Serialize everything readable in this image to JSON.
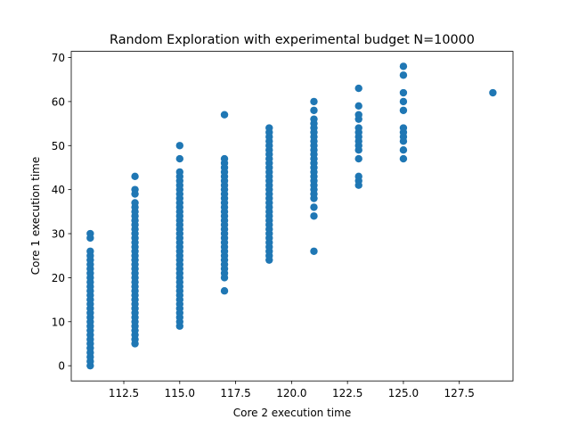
{
  "chart_data": {
    "type": "scatter",
    "title": "Random Exploration with experimental budget N=10000",
    "x_label": "Core 2 execution time",
    "y_label": "Core 1 execution time",
    "xlim": [
      110.15,
      129.9
    ],
    "ylim": [
      -3.45,
      71.4
    ],
    "xticks": [
      112.5,
      {
        "value": 115,
        "label": "115.0"
      },
      117.5,
      {
        "value": 120,
        "label": "120.0"
      },
      122.5,
      {
        "value": 125,
        "label": "125.0"
      },
      127.5
    ],
    "yticks": [
      0,
      10,
      20,
      30,
      40,
      50,
      60,
      70
    ],
    "grid": false,
    "series": [
      {
        "color": "#1f77b4",
        "x": [
          111,
          111,
          111,
          111,
          111,
          111,
          111,
          111,
          111,
          111,
          111,
          111,
          111,
          111,
          111,
          111,
          111,
          111,
          111,
          111,
          111,
          111,
          111,
          111,
          111,
          111,
          111,
          111,
          111,
          113,
          113,
          113,
          113,
          113,
          113,
          113,
          113,
          113,
          113,
          113,
          113,
          113,
          113,
          113,
          113,
          113,
          113,
          113,
          113,
          113,
          113,
          113,
          113,
          113,
          113,
          113,
          113,
          113,
          113,
          113,
          113,
          113,
          113,
          113,
          113,
          115,
          115,
          115,
          115,
          115,
          115,
          115,
          115,
          115,
          115,
          115,
          115,
          115,
          115,
          115,
          115,
          115,
          115,
          115,
          115,
          115,
          115,
          115,
          115,
          115,
          115,
          115,
          115,
          115,
          115,
          115,
          115,
          115,
          115,
          115,
          115,
          115,
          115,
          117,
          117,
          117,
          117,
          117,
          117,
          117,
          117,
          117,
          117,
          117,
          117,
          117,
          117,
          117,
          117,
          117,
          117,
          117,
          117,
          117,
          117,
          117,
          117,
          117,
          117,
          117,
          117,
          117,
          117,
          119,
          119,
          119,
          119,
          119,
          119,
          119,
          119,
          119,
          119,
          119,
          119,
          119,
          119,
          119,
          119,
          119,
          119,
          119,
          119,
          119,
          119,
          119,
          119,
          119,
          119,
          119,
          119,
          119,
          119,
          119,
          121,
          121,
          121,
          121,
          121,
          121,
          121,
          121,
          121,
          121,
          121,
          121,
          121,
          121,
          121,
          121,
          121,
          121,
          121,
          121,
          121,
          121,
          121,
          121,
          123,
          123,
          123,
          123,
          123,
          123,
          123,
          123,
          123,
          123,
          123,
          123,
          123,
          123,
          125,
          125,
          125,
          125,
          125,
          125,
          125,
          125,
          125,
          125,
          125,
          129
        ],
        "y": [
          0,
          1,
          2,
          3,
          4,
          5,
          6,
          7,
          8,
          9,
          10,
          11,
          12,
          13,
          14,
          15,
          16,
          17,
          18,
          19,
          20,
          21,
          22,
          23,
          24,
          25,
          26,
          29,
          30,
          5,
          6,
          7,
          8,
          9,
          10,
          11,
          12,
          13,
          14,
          15,
          16,
          17,
          18,
          19,
          20,
          21,
          22,
          23,
          24,
          25,
          26,
          27,
          28,
          29,
          30,
          31,
          32,
          33,
          34,
          35,
          36,
          37,
          39,
          40,
          43,
          9,
          10,
          11,
          12,
          13,
          14,
          15,
          16,
          17,
          18,
          19,
          20,
          21,
          22,
          23,
          24,
          25,
          26,
          27,
          28,
          29,
          30,
          31,
          32,
          33,
          34,
          35,
          36,
          37,
          38,
          39,
          40,
          41,
          42,
          43,
          44,
          47,
          50,
          17,
          20,
          21,
          22,
          23,
          24,
          25,
          26,
          27,
          28,
          29,
          30,
          31,
          32,
          33,
          34,
          35,
          36,
          37,
          38,
          39,
          40,
          41,
          42,
          43,
          44,
          45,
          46,
          47,
          57,
          24,
          25,
          26,
          27,
          28,
          29,
          30,
          31,
          32,
          33,
          34,
          35,
          36,
          37,
          38,
          39,
          40,
          41,
          42,
          43,
          44,
          45,
          46,
          47,
          48,
          49,
          50,
          51,
          52,
          53,
          54,
          26,
          34,
          36,
          38,
          39,
          40,
          41,
          42,
          43,
          44,
          45,
          46,
          47,
          48,
          49,
          50,
          51,
          52,
          53,
          54,
          55,
          56,
          58,
          60,
          41,
          42,
          43,
          47,
          49,
          50,
          51,
          52,
          53,
          54,
          56,
          57,
          59,
          63,
          47,
          49,
          51,
          52,
          53,
          54,
          58,
          60,
          62,
          66,
          68,
          62
        ]
      }
    ]
  }
}
